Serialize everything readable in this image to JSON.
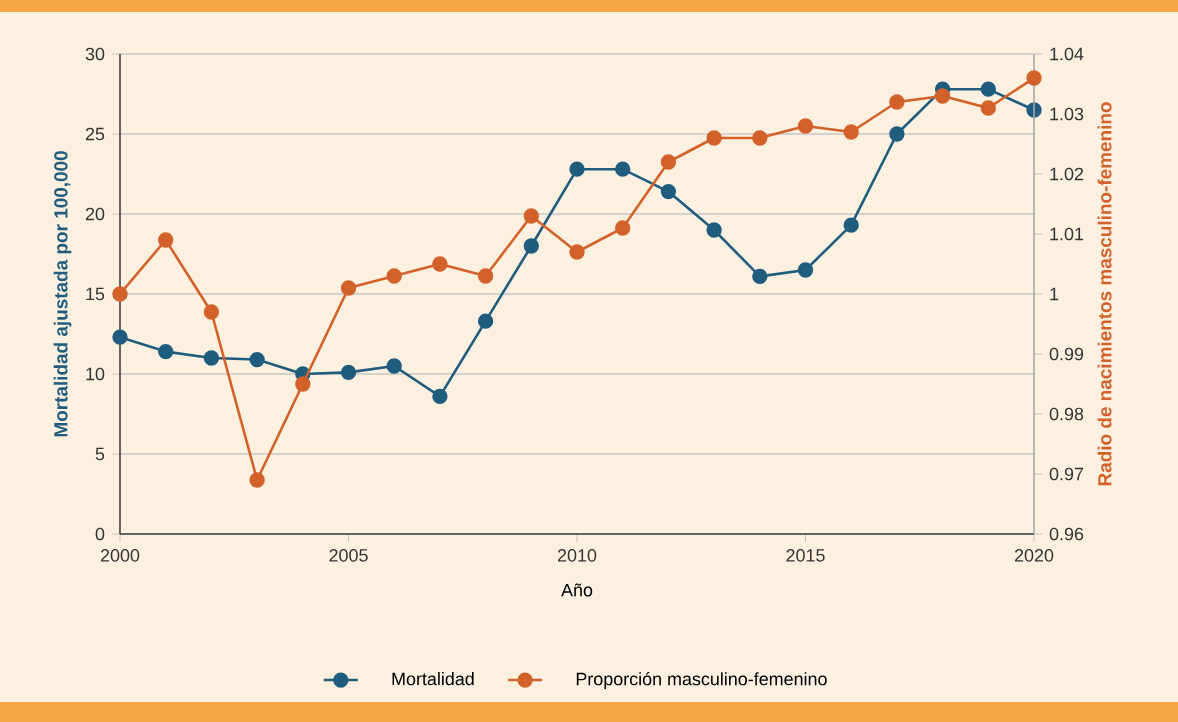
{
  "chart_data": {
    "type": "line",
    "xlabel": "Año",
    "ylabel": "Mortalidad ajustada por 100,000",
    "y2label": "Radio de nacimientos masculino-femenino",
    "x": [
      2000,
      2001,
      2002,
      2003,
      2004,
      2005,
      2006,
      2007,
      2008,
      2009,
      2010,
      2011,
      2012,
      2013,
      2014,
      2015,
      2016,
      2017,
      2018,
      2019,
      2020
    ],
    "series": [
      {
        "name": "Mortalidad",
        "color": "#1f5c7e",
        "values": [
          12.3,
          11.4,
          11.0,
          10.9,
          10.0,
          10.1,
          10.5,
          8.6,
          13.3,
          18.0,
          22.8,
          22.8,
          21.4,
          19.0,
          16.1,
          16.5,
          19.3,
          25.0,
          27.8,
          27.8,
          26.5
        ]
      },
      {
        "name": "Proporción masculino-femenino",
        "color": "#d2622a",
        "axis": "y2",
        "values": [
          1.0,
          1.009,
          0.997,
          0.969,
          0.985,
          1.001,
          1.003,
          1.005,
          1.003,
          1.013,
          1.007,
          1.011,
          1.022,
          1.026,
          1.026,
          1.028,
          1.027,
          1.032,
          1.033,
          1.031,
          1.036
        ]
      }
    ],
    "xlim": [
      2000,
      2020
    ],
    "xticks": [
      2000,
      2005,
      2010,
      2015,
      2020
    ],
    "ylim": [
      0,
      30
    ],
    "yticks": [
      0,
      5,
      10,
      15,
      20,
      25,
      30
    ],
    "y2lim": [
      0.96,
      1.04
    ],
    "y2ticks": [
      0.96,
      0.97,
      0.98,
      0.99,
      1,
      1.01,
      1.02,
      1.03,
      1.04
    ],
    "grid": "y",
    "legend": "bottom",
    "marker": "circle",
    "line_style": "solid"
  }
}
